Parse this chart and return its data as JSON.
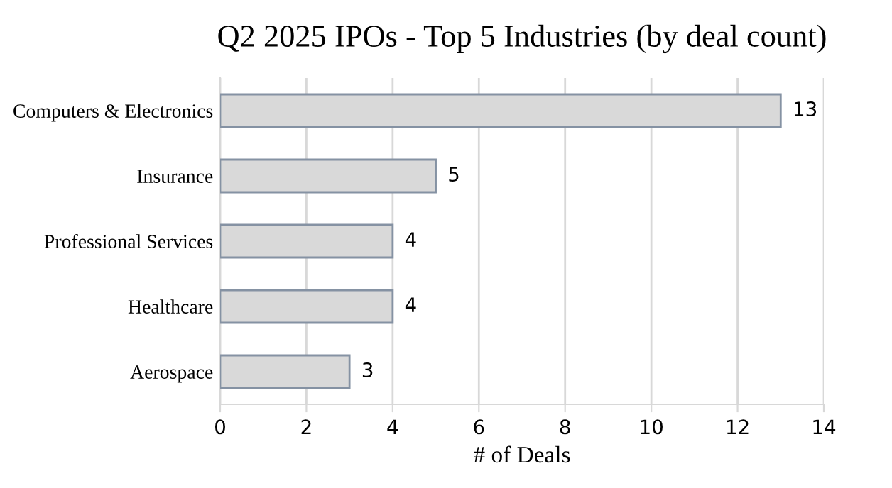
{
  "chart_data": {
    "type": "bar",
    "orientation": "horizontal",
    "title": "Q2 2025 IPOs - Top 5 Industries (by deal count)",
    "xlabel": "# of Deals",
    "categories": [
      "Computers & Electronics",
      "Insurance",
      "Professional Services",
      "Healthcare",
      "Aerospace"
    ],
    "values": [
      13,
      5,
      4,
      4,
      3
    ],
    "color": "#d9d9d9",
    "xlim": [
      0,
      14
    ],
    "xticks": [
      0,
      2,
      4,
      6,
      8,
      10,
      12,
      14
    ],
    "grid": "x",
    "data_labels": true
  }
}
